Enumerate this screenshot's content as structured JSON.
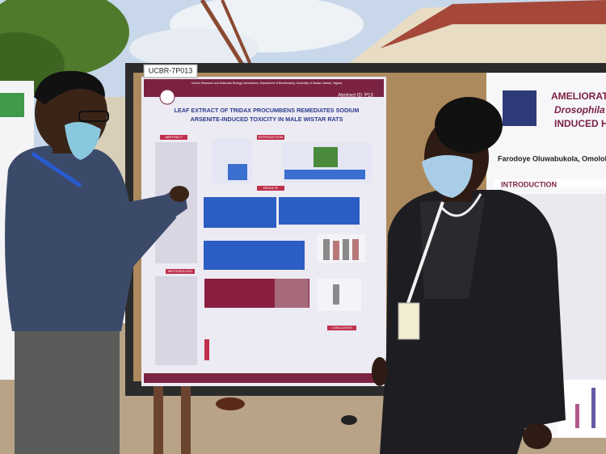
{
  "poster": {
    "label": "UCBR-7P013",
    "header": "Cancer Research and Molecular Biology Laboratories, Department of Biochemistry, University of Ibadan, Ibadan, Nigeria",
    "abstract_id": "Abstract ID: P13",
    "title_lines": [
      "LEAF EXTRACT OF TRIDAX PROCUMBENS REMEDIATES SODIUM",
      "ARSENITE-INDUCED TOXICITY IN MALE WISTAR RATS"
    ],
    "sections": [
      "ABSTRACT",
      "INTRODUCTION",
      "RESULTS",
      "METHODOLOGY",
      "CONCLUSION"
    ]
  },
  "right_poster": {
    "title_lines": [
      "AMELIORATIVE ROL",
      "Drosophila melano",
      "INDUCED HYPERC"
    ],
    "authors": "Farodoye Oluwabukola, Omolola A.",
    "section": "INTRODUCTION"
  }
}
